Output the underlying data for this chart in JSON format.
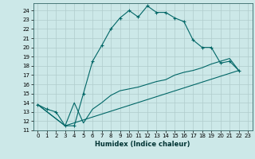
{
  "title": "",
  "xlabel": "Humidex (Indice chaleur)",
  "ylabel": "",
  "background_color": "#cce8e8",
  "grid_color": "#b0cccc",
  "line_color": "#006666",
  "xlim": [
    -0.5,
    23.5
  ],
  "ylim": [
    11,
    24.8
  ],
  "xticks": [
    0,
    1,
    2,
    3,
    4,
    5,
    6,
    7,
    8,
    9,
    10,
    11,
    12,
    13,
    14,
    15,
    16,
    17,
    18,
    19,
    20,
    21,
    22,
    23
  ],
  "yticks": [
    11,
    12,
    13,
    14,
    15,
    16,
    17,
    18,
    19,
    20,
    21,
    22,
    23,
    24
  ],
  "series1_x": [
    0,
    1,
    2,
    3,
    4,
    5,
    6,
    7,
    8,
    9,
    10,
    11,
    12,
    13,
    14,
    15,
    16,
    17,
    18,
    19,
    20,
    21,
    22
  ],
  "series1_y": [
    13.8,
    13.3,
    13.0,
    11.5,
    11.5,
    15.0,
    18.5,
    20.2,
    22.0,
    23.2,
    24.0,
    23.3,
    24.5,
    23.8,
    23.8,
    23.2,
    22.8,
    20.8,
    20.0,
    20.0,
    18.3,
    18.5,
    17.5
  ],
  "series2_x": [
    0,
    3,
    4,
    5,
    6,
    7,
    8,
    9,
    10,
    11,
    12,
    13,
    14,
    15,
    16,
    17,
    18,
    19,
    20,
    21,
    22
  ],
  "series2_y": [
    13.8,
    11.5,
    14.0,
    11.8,
    13.3,
    14.0,
    14.8,
    15.3,
    15.5,
    15.7,
    16.0,
    16.3,
    16.5,
    17.0,
    17.3,
    17.5,
    17.8,
    18.2,
    18.5,
    18.8,
    17.5
  ],
  "series3_x": [
    0,
    3,
    22
  ],
  "series3_y": [
    13.8,
    11.5,
    17.5
  ]
}
